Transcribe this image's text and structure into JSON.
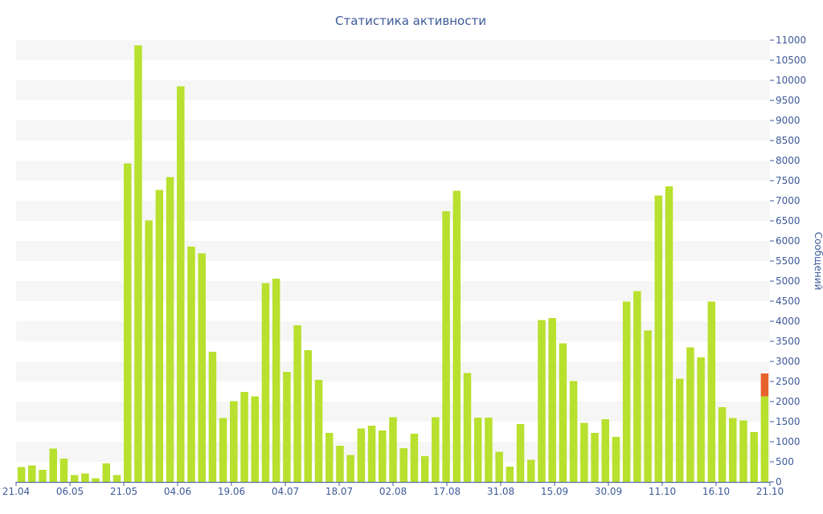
{
  "chart_data": {
    "type": "bar",
    "title": "Статистика активности",
    "ylabel": "Сообщений",
    "xlabel": "",
    "ylim": [
      0,
      11000
    ],
    "y_ticks": [
      0,
      500,
      1000,
      1500,
      2000,
      2500,
      3000,
      3500,
      4000,
      4500,
      5000,
      5500,
      6000,
      6500,
      7000,
      7500,
      8000,
      8500,
      9000,
      9500,
      10000,
      10500,
      11000
    ],
    "x_tick_labels": [
      "21.04",
      "06.05",
      "21.05",
      "04.06",
      "19.06",
      "04.07",
      "18.07",
      "02.08",
      "17.08",
      "31.08",
      "15.09",
      "30.09",
      "11.10",
      "16.10",
      "21.10"
    ],
    "grid": "alternating horizontal bands",
    "y_axis_position": "right",
    "colors": {
      "bar": "#b8e02e",
      "highlight": "#e8622c",
      "text": "#3e5a99",
      "band": "#f6f6f6"
    },
    "values": [
      370,
      410,
      300,
      830,
      580,
      170,
      210,
      90,
      460,
      170,
      7930,
      10870,
      6510,
      7270,
      7590,
      9850,
      5860,
      5690,
      3240,
      1590,
      2010,
      2240,
      2130,
      4950,
      5060,
      2740,
      3900,
      3280,
      2540,
      1220,
      900,
      670,
      1330,
      1400,
      1280,
      1610,
      840,
      1200,
      640,
      1610,
      6740,
      7250,
      2710,
      1600,
      1600,
      750,
      380,
      1440,
      550,
      4030,
      4080,
      3450,
      2510,
      1470,
      1220,
      1560,
      1120,
      4490,
      4750,
      3770,
      7130,
      7360,
      2570,
      3350,
      3100,
      4490,
      1860,
      1590,
      1530,
      1240,
      2130
    ],
    "highlight": {
      "index": 70,
      "base": 2130,
      "top": 2700
    }
  }
}
